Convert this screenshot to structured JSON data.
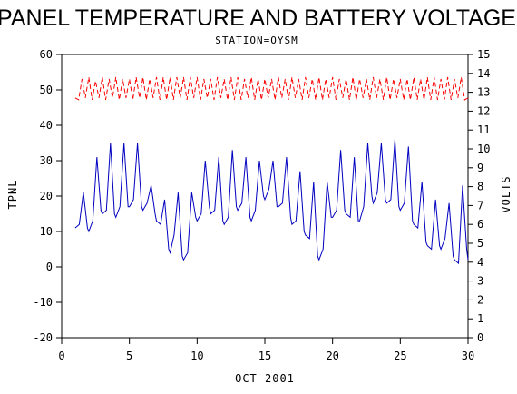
{
  "chart_data": {
    "type": "line",
    "title": "PANEL TEMPERATURE AND BATTERY VOLTAGE",
    "subtitle": "STATION=OYSM",
    "xlabel": "OCT 2001",
    "ylabel_left": "TPNL",
    "ylabel_right": "VOLTS",
    "xlim": [
      0,
      30
    ],
    "ylim_left": [
      -20,
      60
    ],
    "ylim_right": [
      0,
      15
    ],
    "x_ticks": [
      "0",
      "5",
      "10",
      "15",
      "20",
      "25",
      "30"
    ],
    "y_left_ticks": [
      "-20",
      "-10",
      "0",
      "10",
      "20",
      "30",
      "40",
      "50",
      "60"
    ],
    "y_right_ticks": [
      "0",
      "1",
      "2",
      "3",
      "4",
      "5",
      "6",
      "7",
      "8",
      "9",
      "10",
      "11",
      "12",
      "13",
      "14",
      "15"
    ],
    "series": [
      {
        "axis": "left",
        "color": "#0000c0",
        "style": "solid",
        "x": [
          1.0,
          1.3,
          1.6,
          1.9,
          2.0,
          2.3,
          2.6,
          2.9,
          3.0,
          3.3,
          3.6,
          3.9,
          4.0,
          4.3,
          4.6,
          4.9,
          5.0,
          5.3,
          5.6,
          5.9,
          6.0,
          6.3,
          6.6,
          6.9,
          7.0,
          7.3,
          7.6,
          7.9,
          8.0,
          8.3,
          8.6,
          8.9,
          9.0,
          9.3,
          9.6,
          9.9,
          10.0,
          10.3,
          10.6,
          10.9,
          11.0,
          11.3,
          11.6,
          11.9,
          12.0,
          12.3,
          12.6,
          12.9,
          13.0,
          13.3,
          13.6,
          13.9,
          14.0,
          14.3,
          14.6,
          14.9,
          15.0,
          15.3,
          15.6,
          15.9,
          16.0,
          16.3,
          16.6,
          16.9,
          17.0,
          17.3,
          17.6,
          17.9,
          18.0,
          18.3,
          18.6,
          18.9,
          19.0,
          19.3,
          19.6,
          19.9,
          20.0,
          20.3,
          20.6,
          20.9,
          21.0,
          21.3,
          21.6,
          21.9,
          22.0,
          22.3,
          22.6,
          22.9,
          23.0,
          23.3,
          23.6,
          23.9,
          24.0,
          24.3,
          24.6,
          24.9,
          25.0,
          25.3,
          25.6,
          25.9,
          26.0,
          26.3,
          26.6,
          26.9,
          27.0,
          27.3,
          27.6,
          27.9,
          28.0,
          28.3,
          28.6,
          28.9,
          29.0,
          29.3,
          29.6,
          29.9,
          30.0
        ],
        "y": [
          11,
          12,
          21,
          11,
          10,
          13,
          31,
          16,
          15,
          16,
          35,
          15,
          14,
          17,
          35,
          17,
          17,
          19,
          35,
          17,
          16,
          18,
          23,
          15,
          13,
          12,
          19,
          5,
          4,
          9,
          21,
          3,
          2,
          4,
          21,
          14,
          13,
          15,
          30,
          17,
          15,
          16,
          31,
          13,
          12,
          14,
          33,
          17,
          16,
          18,
          31,
          14,
          13,
          16,
          30,
          20,
          19,
          22,
          30,
          17,
          17,
          18,
          31,
          14,
          12,
          13,
          27,
          10,
          9,
          8,
          24,
          3,
          2,
          5,
          24,
          14,
          14,
          16,
          33,
          16,
          15,
          14,
          31,
          13,
          13,
          17,
          35,
          20,
          18,
          21,
          35,
          19,
          18,
          19,
          36,
          17,
          16,
          18,
          34,
          13,
          12,
          11,
          24,
          7,
          6,
          5,
          19,
          6,
          5,
          8,
          18,
          3,
          2,
          1,
          23,
          5,
          2
        ]
      },
      {
        "axis": "right",
        "color": "#ff0000",
        "style": "dashed",
        "x": [
          1.0,
          1.25,
          1.5,
          1.75,
          2.0,
          2.25,
          2.5,
          2.75,
          3.0,
          3.25,
          3.5,
          3.75,
          4.0,
          4.25,
          4.5,
          4.75,
          5.0,
          5.25,
          5.5,
          5.75,
          6.0,
          6.25,
          6.5,
          6.75,
          7.0,
          7.25,
          7.5,
          7.75,
          8.0,
          8.25,
          8.5,
          8.75,
          9.0,
          9.25,
          9.5,
          9.75,
          10.0,
          10.25,
          10.5,
          10.75,
          11.0,
          11.25,
          11.5,
          11.75,
          12.0,
          12.25,
          12.5,
          12.75,
          13.0,
          13.25,
          13.5,
          13.75,
          14.0,
          14.25,
          14.5,
          14.75,
          15.0,
          15.25,
          15.5,
          15.75,
          16.0,
          16.25,
          16.5,
          16.75,
          17.0,
          17.25,
          17.5,
          17.75,
          18.0,
          18.25,
          18.5,
          18.75,
          19.0,
          19.25,
          19.5,
          19.75,
          20.0,
          20.25,
          20.5,
          20.75,
          21.0,
          21.25,
          21.5,
          21.75,
          22.0,
          22.25,
          22.5,
          22.75,
          23.0,
          23.25,
          23.5,
          23.75,
          24.0,
          24.25,
          24.5,
          24.75,
          25.0,
          25.25,
          25.5,
          25.75,
          26.0,
          26.25,
          26.5,
          26.75,
          27.0,
          27.25,
          27.5,
          27.75,
          28.0,
          28.25,
          28.5,
          28.75,
          29.0,
          29.25,
          29.5,
          29.75,
          30.0
        ],
        "y": [
          12.7,
          12.6,
          13.7,
          12.7,
          13.8,
          12.6,
          13.6,
          12.7,
          13.8,
          12.6,
          13.7,
          12.7,
          13.8,
          12.6,
          13.7,
          12.7,
          13.7,
          12.6,
          13.8,
          12.7,
          13.8,
          12.6,
          13.7,
          12.7,
          13.8,
          12.6,
          13.8,
          12.6,
          13.8,
          12.6,
          13.8,
          12.7,
          13.8,
          12.6,
          13.8,
          12.7,
          13.8,
          12.6,
          13.7,
          12.7,
          13.7,
          12.6,
          13.8,
          12.7,
          13.7,
          12.6,
          13.8,
          12.6,
          13.8,
          12.6,
          13.7,
          12.7,
          13.8,
          12.6,
          13.7,
          12.6,
          13.7,
          12.7,
          13.7,
          12.6,
          13.8,
          12.7,
          13.7,
          12.6,
          13.8,
          12.7,
          13.7,
          12.6,
          13.8,
          12.7,
          13.7,
          12.6,
          13.8,
          12.6,
          13.7,
          12.7,
          13.8,
          12.6,
          13.7,
          12.7,
          13.7,
          12.6,
          13.8,
          12.6,
          13.7,
          12.7,
          13.7,
          12.6,
          13.8,
          12.7,
          13.7,
          12.6,
          13.8,
          12.6,
          13.7,
          12.7,
          13.7,
          12.6,
          13.7,
          12.6,
          13.8,
          12.6,
          13.7,
          12.6,
          13.8,
          12.6,
          13.8,
          12.6,
          13.7,
          12.6,
          13.8,
          12.6,
          13.7,
          12.7,
          13.8,
          12.6,
          12.7
        ]
      }
    ],
    "grid": false,
    "legend": "none"
  }
}
